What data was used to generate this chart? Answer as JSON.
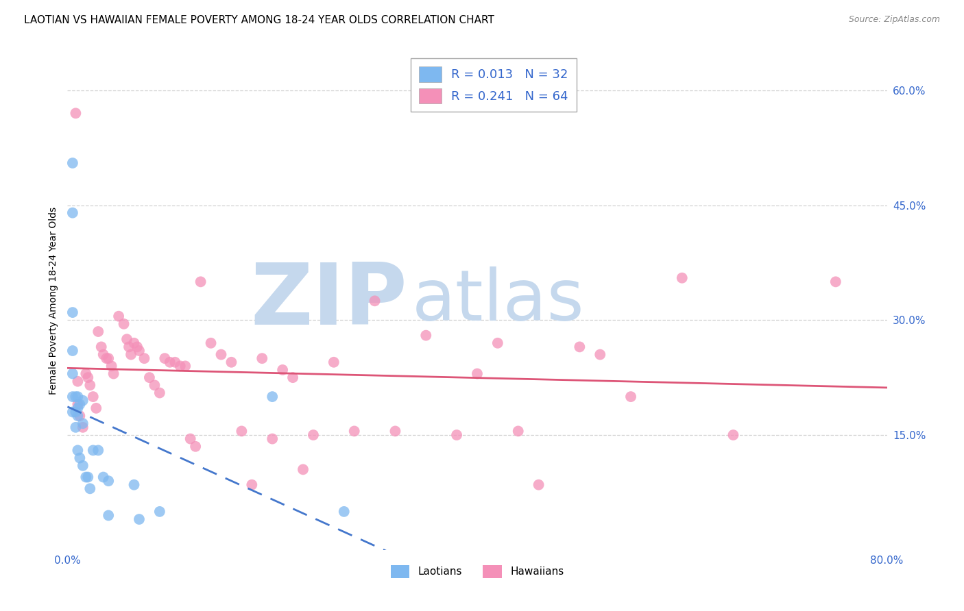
{
  "title": "LAOTIAN VS HAWAIIAN FEMALE POVERTY AMONG 18-24 YEAR OLDS CORRELATION CHART",
  "source": "Source: ZipAtlas.com",
  "ylabel": "Female Poverty Among 18-24 Year Olds",
  "xlim": [
    0.0,
    0.8
  ],
  "ylim": [
    0.0,
    0.65
  ],
  "y_ticks_right": [
    0.15,
    0.3,
    0.45,
    0.6
  ],
  "y_tick_labels_right": [
    "15.0%",
    "30.0%",
    "45.0%",
    "60.0%"
  ],
  "laotian_color": "#7EB8F0",
  "hawaiian_color": "#F490B8",
  "laotian_line_color": "#4477CC",
  "hawaiian_line_color": "#DD5577",
  "laotian_R": 0.013,
  "laotian_N": 32,
  "hawaiian_R": 0.241,
  "hawaiian_N": 64,
  "legend_text_color": "#3366CC",
  "laotians_x": [
    0.005,
    0.005,
    0.005,
    0.005,
    0.005,
    0.005,
    0.005,
    0.008,
    0.008,
    0.008,
    0.01,
    0.01,
    0.01,
    0.01,
    0.012,
    0.012,
    0.015,
    0.015,
    0.015,
    0.018,
    0.02,
    0.022,
    0.025,
    0.03,
    0.035,
    0.04,
    0.04,
    0.065,
    0.07,
    0.09,
    0.2,
    0.27
  ],
  "laotians_y": [
    0.505,
    0.44,
    0.31,
    0.26,
    0.23,
    0.2,
    0.18,
    0.2,
    0.18,
    0.16,
    0.2,
    0.185,
    0.175,
    0.13,
    0.19,
    0.12,
    0.195,
    0.165,
    0.11,
    0.095,
    0.095,
    0.08,
    0.13,
    0.13,
    0.095,
    0.09,
    0.045,
    0.085,
    0.04,
    0.05,
    0.2,
    0.05
  ],
  "hawaiians_x": [
    0.008,
    0.01,
    0.01,
    0.012,
    0.015,
    0.018,
    0.02,
    0.022,
    0.025,
    0.028,
    0.03,
    0.033,
    0.035,
    0.038,
    0.04,
    0.043,
    0.045,
    0.05,
    0.055,
    0.058,
    0.06,
    0.062,
    0.065,
    0.068,
    0.07,
    0.075,
    0.08,
    0.085,
    0.09,
    0.095,
    0.1,
    0.105,
    0.11,
    0.115,
    0.12,
    0.125,
    0.13,
    0.14,
    0.15,
    0.16,
    0.17,
    0.18,
    0.19,
    0.2,
    0.21,
    0.22,
    0.23,
    0.24,
    0.26,
    0.28,
    0.3,
    0.32,
    0.35,
    0.38,
    0.4,
    0.42,
    0.44,
    0.46,
    0.5,
    0.52,
    0.55,
    0.6,
    0.65,
    0.75
  ],
  "hawaiians_y": [
    0.57,
    0.22,
    0.19,
    0.175,
    0.16,
    0.23,
    0.225,
    0.215,
    0.2,
    0.185,
    0.285,
    0.265,
    0.255,
    0.25,
    0.25,
    0.24,
    0.23,
    0.305,
    0.295,
    0.275,
    0.265,
    0.255,
    0.27,
    0.265,
    0.26,
    0.25,
    0.225,
    0.215,
    0.205,
    0.25,
    0.245,
    0.245,
    0.24,
    0.24,
    0.145,
    0.135,
    0.35,
    0.27,
    0.255,
    0.245,
    0.155,
    0.085,
    0.25,
    0.145,
    0.235,
    0.225,
    0.105,
    0.15,
    0.245,
    0.155,
    0.325,
    0.155,
    0.28,
    0.15,
    0.23,
    0.27,
    0.155,
    0.085,
    0.265,
    0.255,
    0.2,
    0.355,
    0.15,
    0.35
  ],
  "watermark_ZIP": "ZIP",
  "watermark_atlas": "atlas",
  "watermark_color": "#c5d8ed",
  "background_color": "#ffffff",
  "grid_color": "#cccccc",
  "title_fontsize": 11,
  "axis_label_fontsize": 10,
  "tick_fontsize": 10
}
